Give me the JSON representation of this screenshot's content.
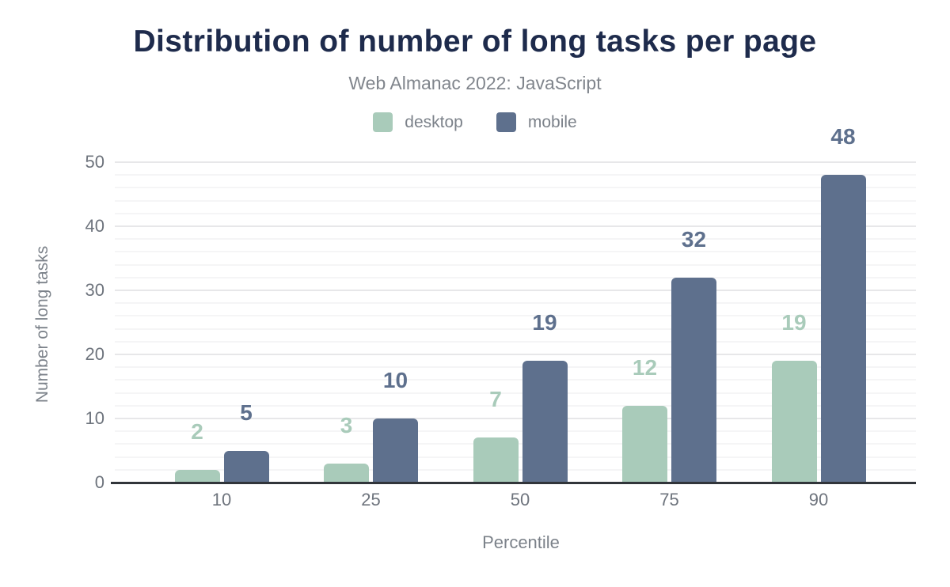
{
  "chart_data": {
    "type": "bar",
    "title": "Distribution of number of long tasks per page",
    "subtitle": "Web Almanac 2022: JavaScript",
    "xlabel": "Percentile",
    "ylabel": "Number of long tasks",
    "categories": [
      "10",
      "25",
      "50",
      "75",
      "90"
    ],
    "series": [
      {
        "name": "desktop",
        "color": "#a9cbba",
        "values": [
          2,
          3,
          7,
          12,
          19
        ],
        "labels": [
          "2",
          "3",
          "7",
          "12",
          "19"
        ]
      },
      {
        "name": "mobile",
        "color": "#5e708d",
        "values": [
          5,
          10,
          19,
          32,
          48
        ],
        "labels": [
          "5",
          "10",
          "19",
          "32",
          "48"
        ]
      }
    ],
    "ylim": [
      0,
      50
    ],
    "yticks": [
      0,
      10,
      20,
      30,
      40,
      50
    ],
    "minor_grid_step": 2,
    "grid": true,
    "legend_position": "top"
  },
  "colors": {
    "background": "#ffffff",
    "title": "#1e2b4c",
    "subtitle": "#80858c",
    "tick_label": "#6e747d",
    "axis_title": "#7c828a",
    "axis_line": "#31353a",
    "major_grid": "#e7e7e9",
    "minor_grid": "#f5f5f6"
  }
}
